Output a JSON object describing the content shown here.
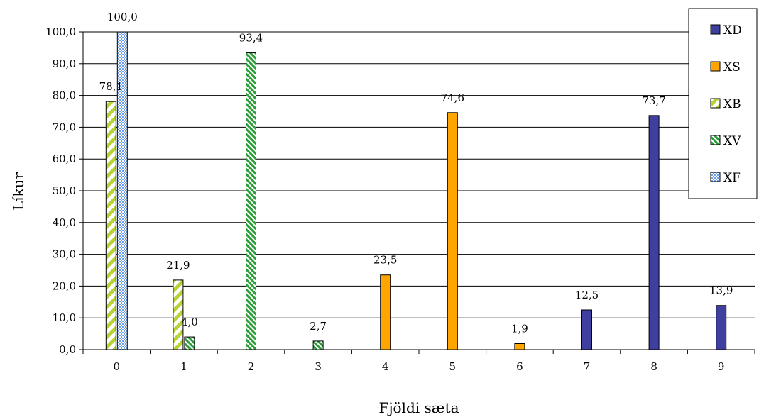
{
  "chart_data": {
    "type": "bar",
    "xlabel": "Fjöldi sæta",
    "ylabel": "Líkur",
    "ylim": [
      0,
      100
    ],
    "ytick_step": 10,
    "categories": [
      "0",
      "1",
      "2",
      "3",
      "4",
      "5",
      "6",
      "7",
      "8",
      "9"
    ],
    "grid": true,
    "legend_position": "top-right",
    "series": [
      {
        "name": "XD",
        "color": "#3f3fa0",
        "pattern": "solid",
        "values": [
          null,
          null,
          null,
          null,
          null,
          null,
          null,
          12.5,
          73.7,
          13.9
        ],
        "labels": [
          null,
          null,
          null,
          null,
          null,
          null,
          null,
          "12,5",
          "73,7",
          "13,9"
        ]
      },
      {
        "name": "XS",
        "color": "#ffa500",
        "pattern": "solid",
        "values": [
          null,
          null,
          null,
          null,
          23.5,
          74.6,
          1.9,
          null,
          null,
          null
        ],
        "labels": [
          null,
          null,
          null,
          null,
          "23,5",
          "74,6",
          "1,9",
          null,
          null,
          null
        ]
      },
      {
        "name": "XB",
        "color": "#b5d334",
        "pattern": "diagonal",
        "values": [
          78.1,
          21.9,
          null,
          null,
          null,
          null,
          null,
          null,
          null,
          null
        ],
        "labels": [
          "78,1",
          "21,9",
          null,
          null,
          null,
          null,
          null,
          null,
          null,
          null
        ]
      },
      {
        "name": "XV",
        "color": "#2e9e3a",
        "pattern": "hatch",
        "values": [
          null,
          4.0,
          93.4,
          2.7,
          null,
          null,
          null,
          null,
          null,
          null
        ],
        "labels": [
          null,
          "4,0",
          "93,4",
          "2,7",
          null,
          null,
          null,
          null,
          null,
          null
        ]
      },
      {
        "name": "XF",
        "color": "#6f9ee8",
        "pattern": "checker",
        "values": [
          100.0,
          null,
          null,
          null,
          null,
          null,
          null,
          null,
          null,
          null
        ],
        "labels": [
          "100,0",
          null,
          null,
          null,
          null,
          null,
          null,
          null,
          null,
          null
        ]
      }
    ],
    "ytick_labels": [
      "0,0",
      "10,0",
      "20,0",
      "30,0",
      "40,0",
      "50,0",
      "60,0",
      "70,0",
      "80,0",
      "90,0",
      "100,0"
    ]
  }
}
